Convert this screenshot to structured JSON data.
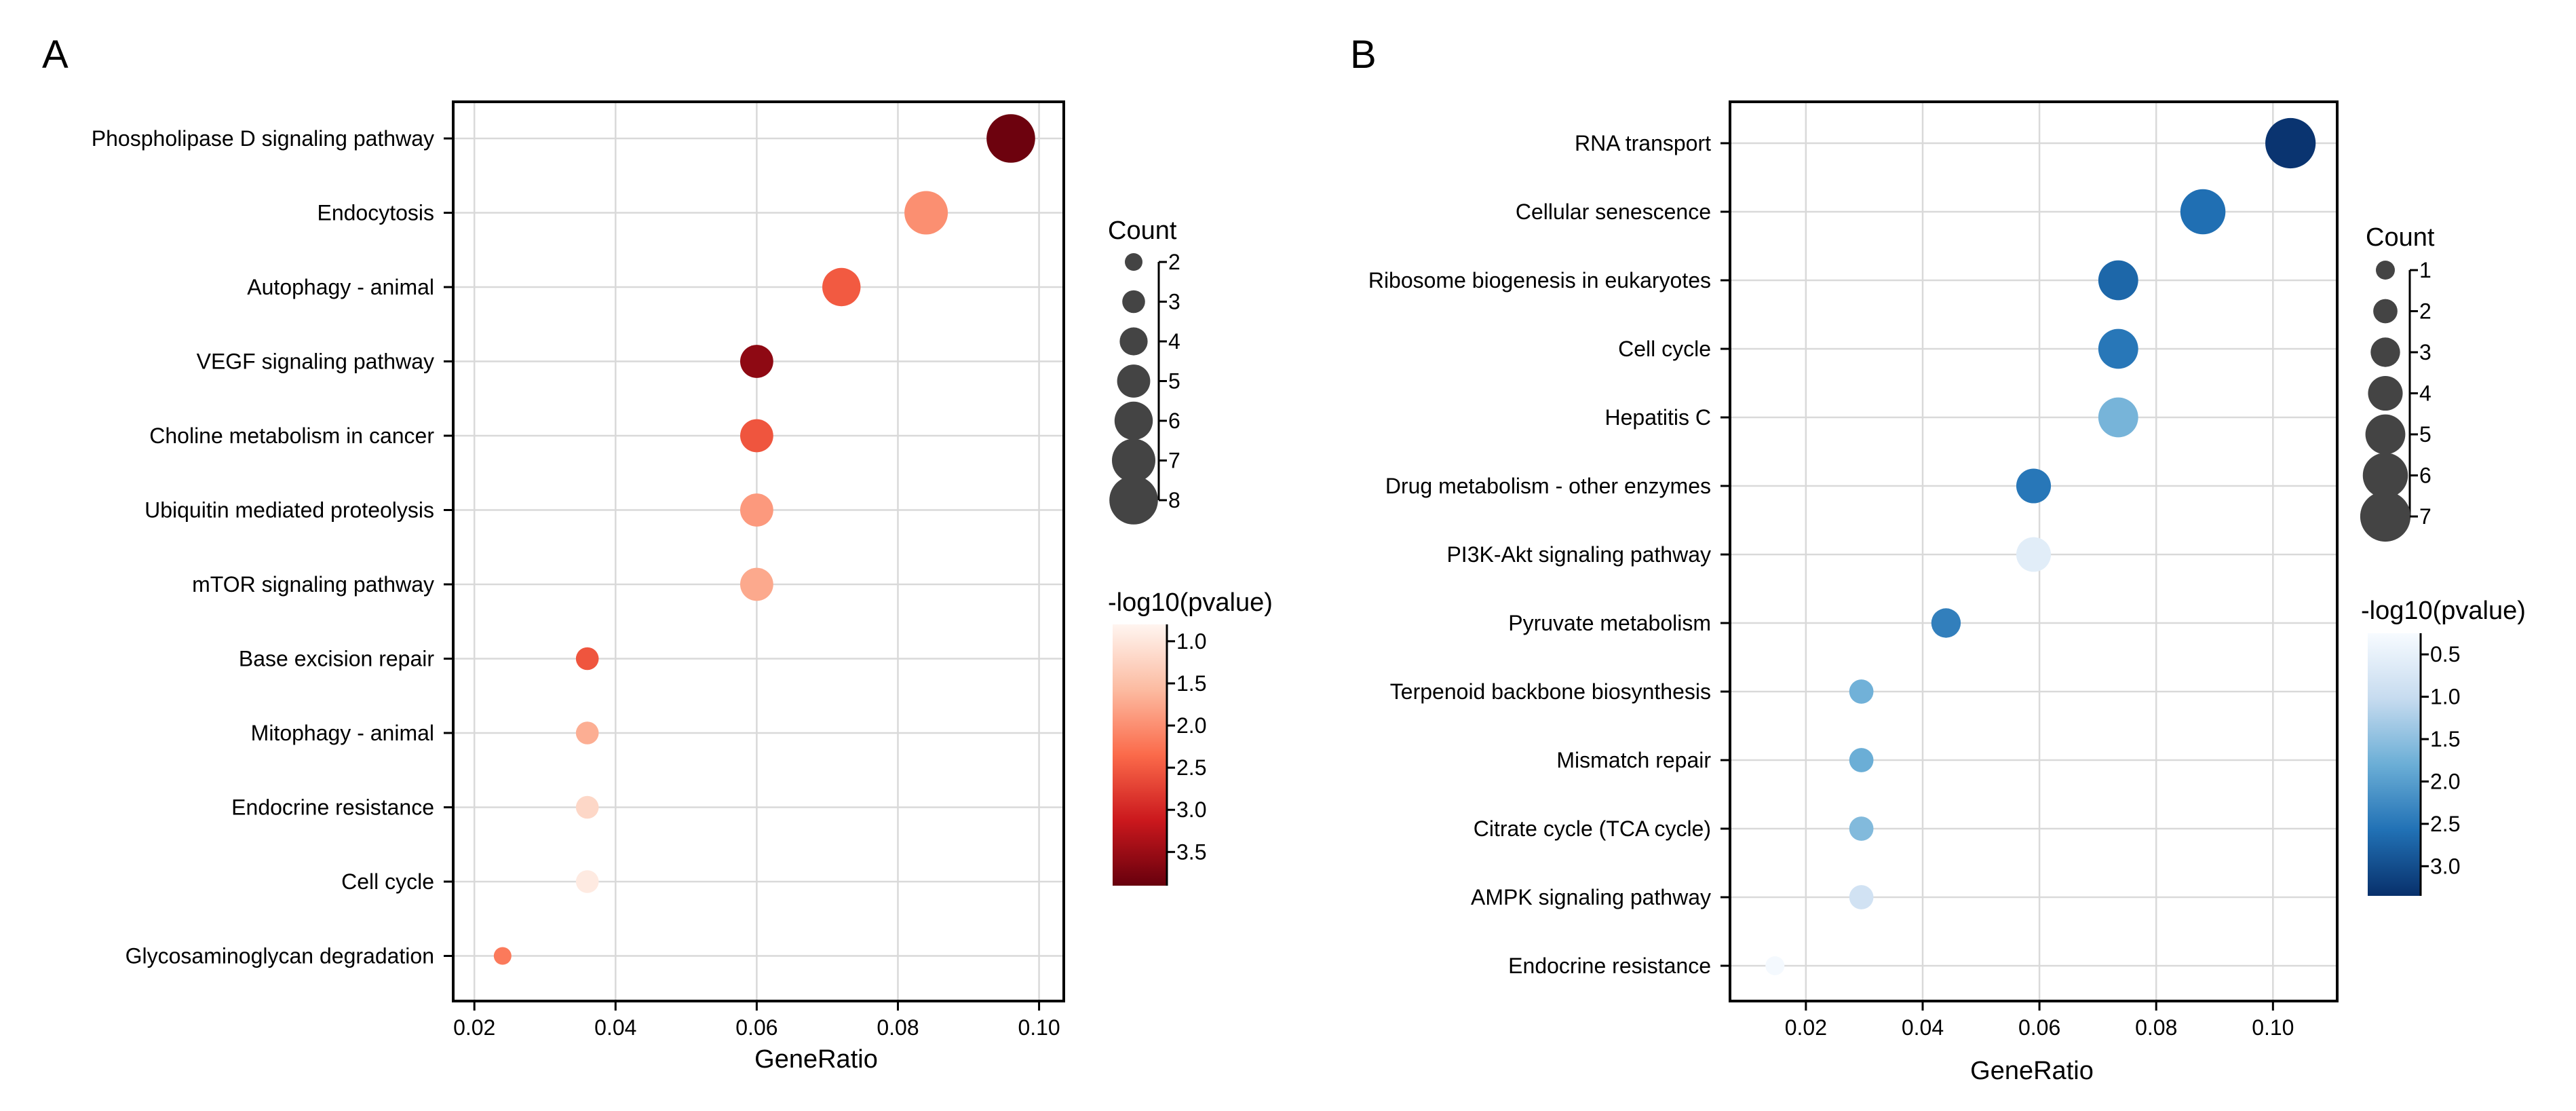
{
  "chart_data": [
    {
      "type": "scatter",
      "panel": "A",
      "title": "",
      "xlabel": "GeneRatio",
      "ylabel": "",
      "xlim": [
        0.017,
        0.1035
      ],
      "xticks": [
        0.02,
        0.04,
        0.06,
        0.08,
        0.1
      ],
      "xtick_labels": [
        "0.02",
        "0.04",
        "0.06",
        "0.08",
        "0.10"
      ],
      "grid": true,
      "categories": [
        "Phospholipase D signaling pathway",
        "Endocytosis",
        "Autophagy - animal",
        "VEGF signaling pathway",
        "Choline metabolism in cancer",
        "Ubiquitin mediated proteolysis",
        "mTOR signaling pathway",
        "Base excision repair",
        "Mitophagy - animal",
        "Endocrine resistance",
        "Cell cycle",
        "Glycosaminoglycan degradation"
      ],
      "x": [
        0.096,
        0.084,
        0.072,
        0.06,
        0.06,
        0.06,
        0.06,
        0.036,
        0.036,
        0.036,
        0.036,
        0.024
      ],
      "count": [
        8,
        7,
        6,
        5,
        5,
        5,
        5,
        3,
        3,
        3,
        3,
        2
      ],
      "neg_log10_pvalue": [
        3.85,
        2.0,
        2.5,
        3.6,
        2.55,
        1.9,
        1.75,
        2.55,
        1.7,
        1.2,
        0.95,
        2.2
      ],
      "size_legend": {
        "title": "Count",
        "values": [
          2,
          3,
          4,
          5,
          6,
          7,
          8
        ],
        "labels": [
          "2",
          "3",
          "4",
          "5",
          "6",
          "7",
          "8"
        ]
      },
      "color_legend": {
        "title": "-log10(pvalue)",
        "colormap": "Reds",
        "range": [
          0.8,
          3.9
        ],
        "ticks": [
          1.0,
          1.5,
          2.0,
          2.5,
          3.0,
          3.5
        ],
        "tick_labels": [
          "1.0",
          "1.5",
          "2.0",
          "2.5",
          "3.0",
          "3.5"
        ],
        "stops": [
          "#fff5f0",
          "#fcbba1",
          "#fb6a4a",
          "#cb181d",
          "#67000d"
        ]
      },
      "legend_position": "right"
    },
    {
      "type": "scatter",
      "panel": "B",
      "title": "",
      "xlabel": "GeneRatio",
      "ylabel": "",
      "xlim": [
        0.007,
        0.111
      ],
      "xticks": [
        0.02,
        0.04,
        0.06,
        0.08,
        0.1
      ],
      "xtick_labels": [
        "0.02",
        "0.04",
        "0.06",
        "0.08",
        "0.10"
      ],
      "grid": true,
      "categories": [
        "RNA transport",
        "Cellular senescence",
        "Ribosome biogenesis in eukaryotes",
        "Cell cycle",
        "Hepatitis C",
        "Drug metabolism - other enzymes",
        "PI3K-Akt signaling pathway",
        "Pyruvate metabolism",
        "Terpenoid backbone biosynthesis",
        "Mismatch repair",
        "Citrate cycle (TCA cycle)",
        "AMPK signaling pathway",
        "Endocrine resistance"
      ],
      "x": [
        0.103,
        0.088,
        0.0735,
        0.0735,
        0.0735,
        0.059,
        0.059,
        0.044,
        0.0295,
        0.0295,
        0.0295,
        0.0295,
        0.0147
      ],
      "count": [
        7,
        6,
        5,
        5,
        5,
        4,
        4,
        3,
        2,
        2,
        2,
        2,
        1
      ],
      "neg_log10_pvalue": [
        3.3,
        2.6,
        2.7,
        2.5,
        1.7,
        2.5,
        0.6,
        2.4,
        1.75,
        1.8,
        1.6,
        0.85,
        0.3
      ],
      "size_legend": {
        "title": "Count",
        "values": [
          1,
          2,
          3,
          4,
          5,
          6,
          7
        ],
        "labels": [
          "1",
          "2",
          "3",
          "4",
          "5",
          "6",
          "7"
        ]
      },
      "color_legend": {
        "title": "-log10(pvalue)",
        "colormap": "Blues",
        "range": [
          0.25,
          3.35
        ],
        "ticks": [
          0.5,
          1.0,
          1.5,
          2.0,
          2.5,
          3.0
        ],
        "tick_labels": [
          "0.5",
          "1.0",
          "1.5",
          "2.0",
          "2.5",
          "3.0"
        ],
        "stops": [
          "#f7fbff",
          "#c6dbef",
          "#6baed6",
          "#2171b5",
          "#08306b"
        ]
      },
      "legend_position": "right"
    }
  ],
  "panel_labels": [
    "A",
    "B"
  ],
  "marker_color": "#444444"
}
